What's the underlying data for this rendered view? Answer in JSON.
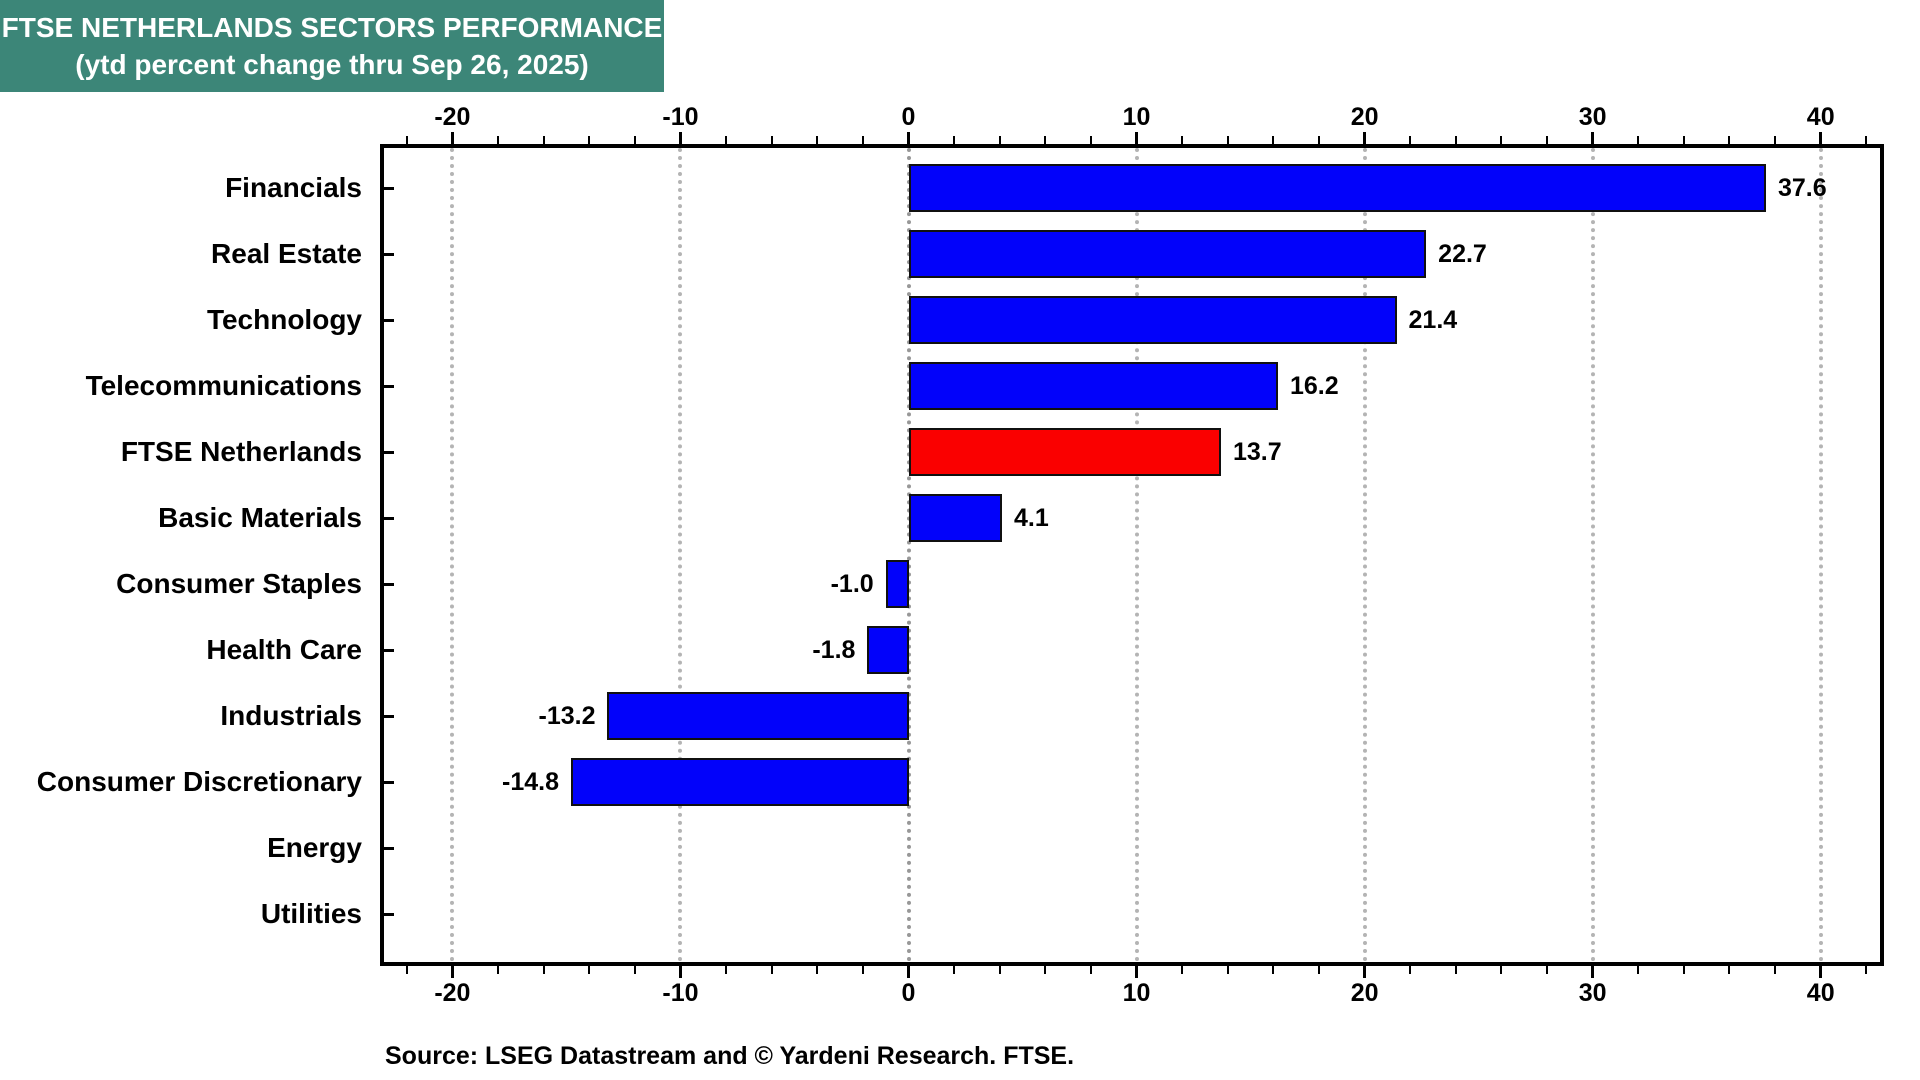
{
  "title": {
    "line1": "FTSE NETHERLANDS SECTORS PERFORMANCE",
    "line2": "(ytd percent change thru Sep 26, 2025)"
  },
  "source": "Source: LSEG Datastream and © Yardeni Research. FTSE.",
  "colors": {
    "title_bg": "#3C8678",
    "title_text": "#FFFFFF",
    "bar_blue": "#0202FA",
    "bar_highlight_red": "#FA0000",
    "bar_border": "#101010",
    "grid": "#B4B4B4",
    "grid_zero": "#989898",
    "axis_frame": "#000000",
    "background": "#FFFFFF",
    "text": "#000000"
  },
  "chart_data": {
    "type": "bar",
    "orientation": "horizontal",
    "title": "FTSE NETHERLANDS SECTORS PERFORMANCE (ytd percent change thru Sep 26, 2025)",
    "categories": [
      "Financials",
      "Real Estate",
      "Technology",
      "Telecommunications",
      "FTSE Netherlands",
      "Basic Materials",
      "Consumer Staples",
      "Health Care",
      "Industrials",
      "Consumer Discretionary",
      "Energy",
      "Utilities"
    ],
    "values": [
      37.6,
      22.7,
      21.4,
      16.2,
      13.7,
      4.1,
      -1.0,
      -1.8,
      -13.2,
      -14.8,
      null,
      null
    ],
    "value_labels": [
      "37.6",
      "22.7",
      "21.4",
      "16.2",
      "13.7",
      "4.1",
      "-1.0",
      "-1.8",
      "-13.2",
      "-14.8",
      "",
      ""
    ],
    "highlight_category": "FTSE Netherlands",
    "highlight_index": 4,
    "xlim": [
      -23.0,
      42.6
    ],
    "x_major_ticks": [
      -20,
      -10,
      0,
      10,
      20,
      30,
      40
    ],
    "x_major_tick_labels": [
      "-20",
      "-10",
      "0",
      "10",
      "20",
      "30",
      "40"
    ],
    "x_minor_tick_step": 2,
    "grid": "vertical-dotted-at-major-ticks",
    "tick_labels_position": "top-and-bottom",
    "legend": "none"
  }
}
